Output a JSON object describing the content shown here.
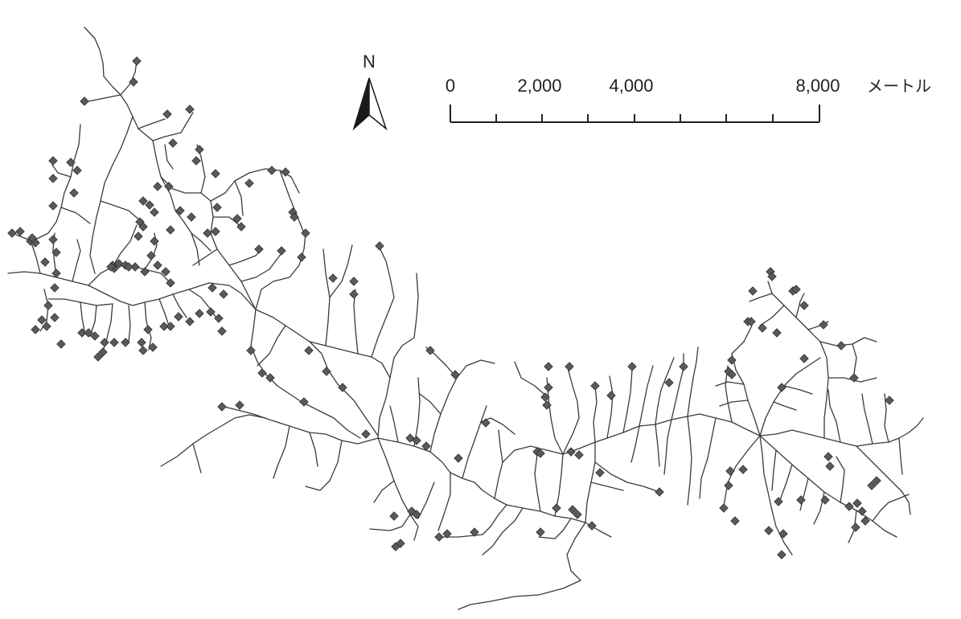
{
  "north_arrow": {
    "label": "N"
  },
  "scale_bar": {
    "ticks": [
      "0",
      "2,000",
      "4,000",
      "8,000"
    ],
    "unit": "メートル"
  },
  "colors": {
    "stream": "#3a3a3a",
    "site_marker": "#5a5a5a",
    "marker_outline": "#333333",
    "text": "#222222"
  }
}
